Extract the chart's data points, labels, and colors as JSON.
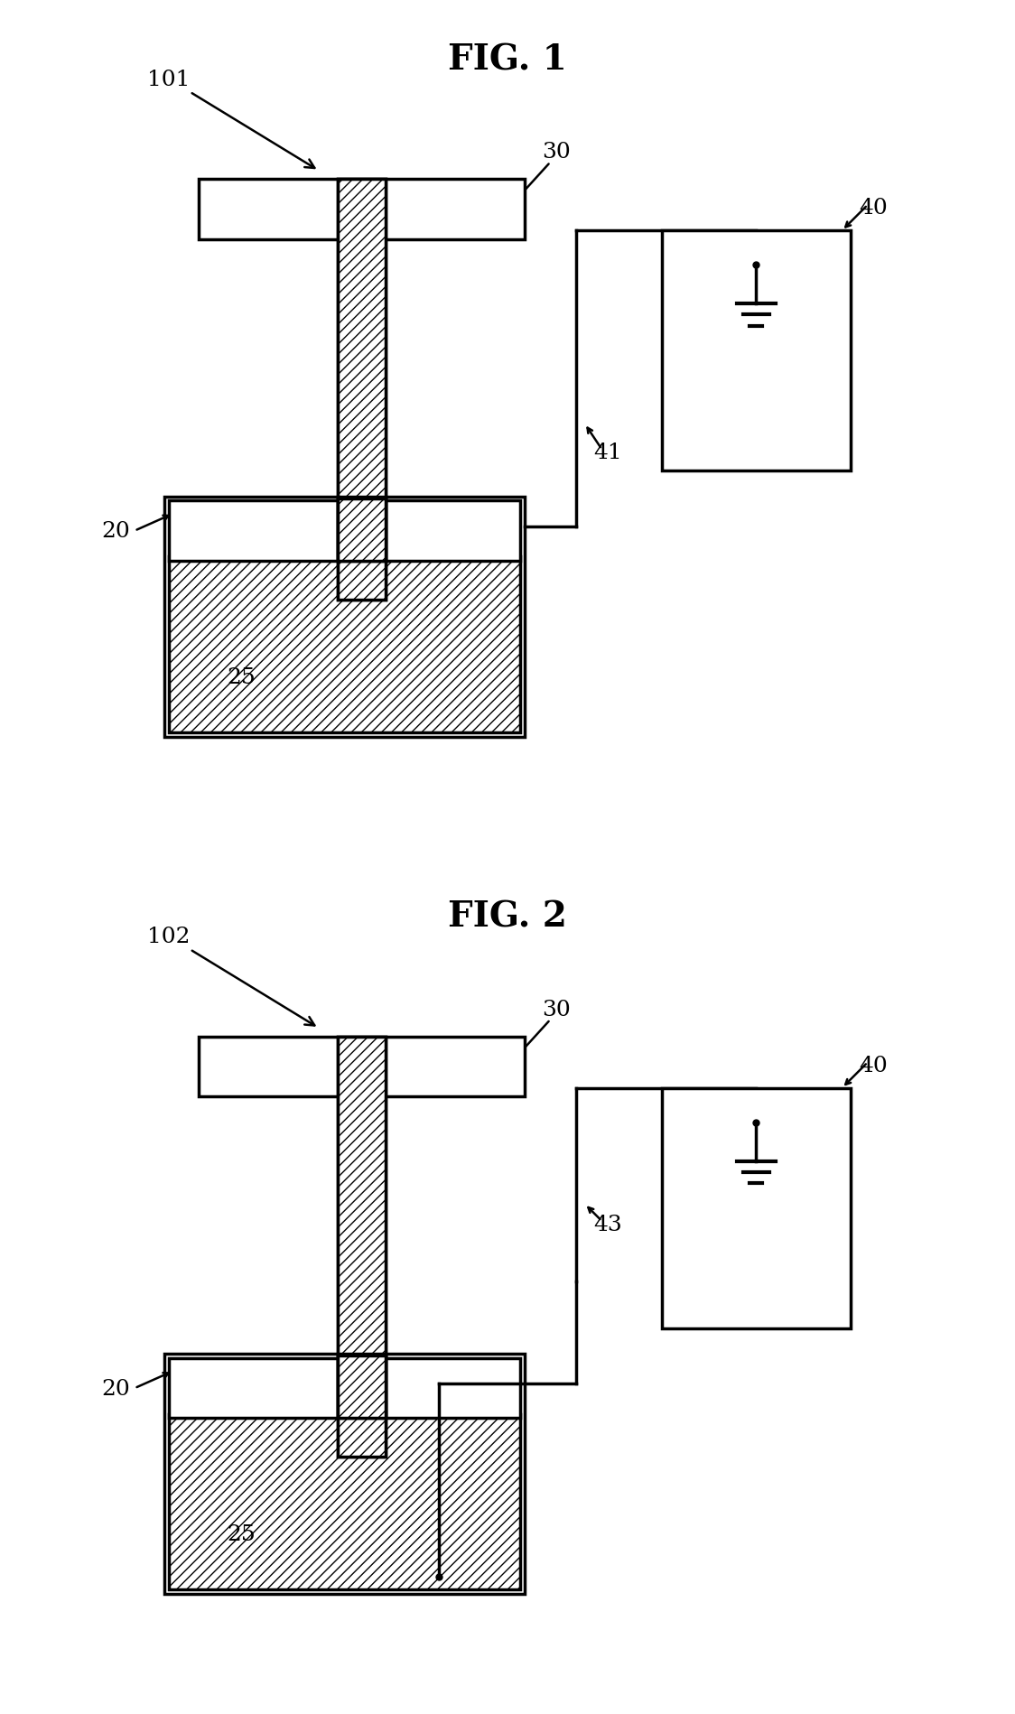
{
  "bg_color": "#ffffff",
  "line_color": "#000000",
  "fig1_title": "FIG. 1",
  "fig2_title": "FIG. 2",
  "title_fontsize": 28,
  "label_fontsize": 18,
  "lw": 2.5
}
